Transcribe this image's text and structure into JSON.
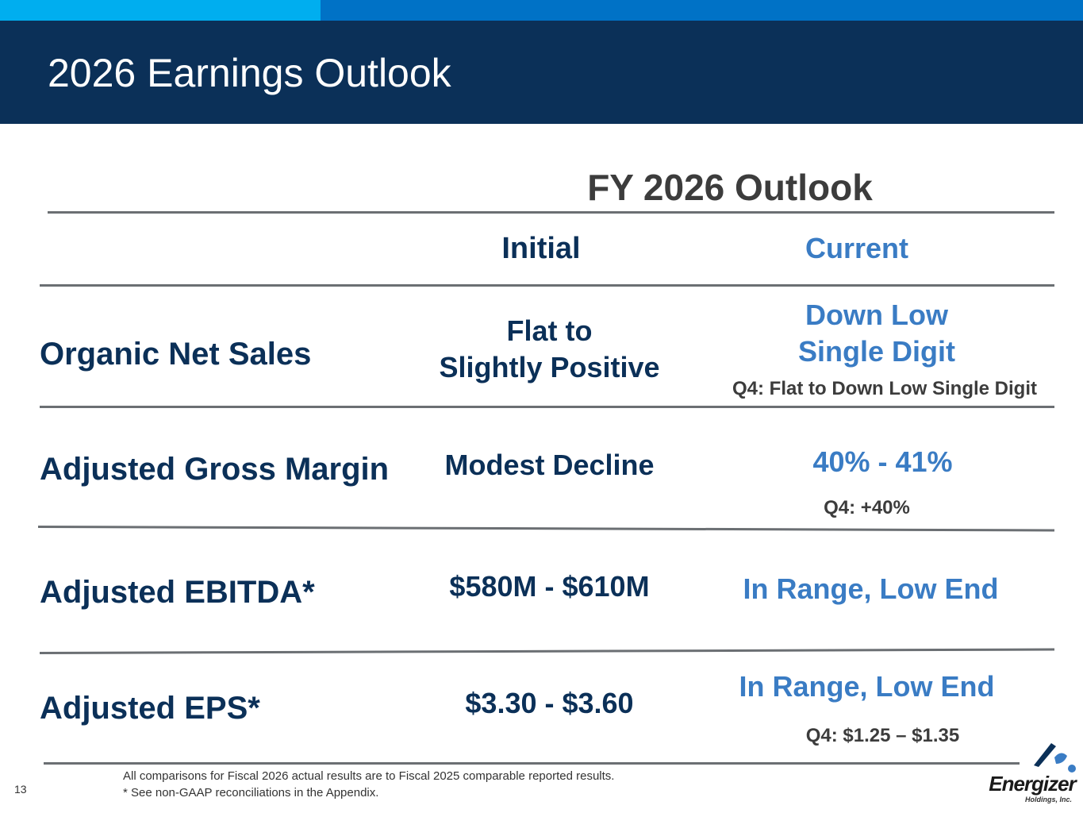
{
  "header": {
    "title": "2026 Earnings Outlook"
  },
  "outlook": {
    "title": "FY 2026 Outlook",
    "col_initial": "Initial",
    "col_current": "Current",
    "rows": [
      {
        "label": "Organic Net Sales",
        "initial": [
          "Flat to",
          "Slightly Positive"
        ],
        "current": [
          "Down Low",
          "Single Digit"
        ],
        "note": "Q4: Flat to Down Low Single Digit"
      },
      {
        "label": "Adjusted Gross Margin",
        "initial": [
          "Modest Decline"
        ],
        "current": [
          "40% - 41%"
        ],
        "note": "Q4: +40%"
      },
      {
        "label": "Adjusted EBITDA*",
        "initial": [
          "$580M - $610M"
        ],
        "current": [
          "In Range, Low End"
        ],
        "note": ""
      },
      {
        "label": "Adjusted EPS*",
        "initial": [
          "$3.30 - $3.60"
        ],
        "current": [
          "In Range, Low End"
        ],
        "note": "Q4: $1.25 – $1.35"
      }
    ]
  },
  "footer": {
    "footnote_1": "All comparisons for Fiscal 2026 actual results are to Fiscal 2025 comparable reported results.",
    "footnote_2": "* See non-GAAP reconciliations in the Appendix.",
    "page_number": "13",
    "logo_text": "Energizer",
    "logo_subtext": "Holdings, Inc."
  },
  "colors": {
    "header_bg": "#0b3058",
    "accent_light": "#00aeef",
    "accent_mid": "#0072c6",
    "current_text": "#3a7cc4"
  }
}
